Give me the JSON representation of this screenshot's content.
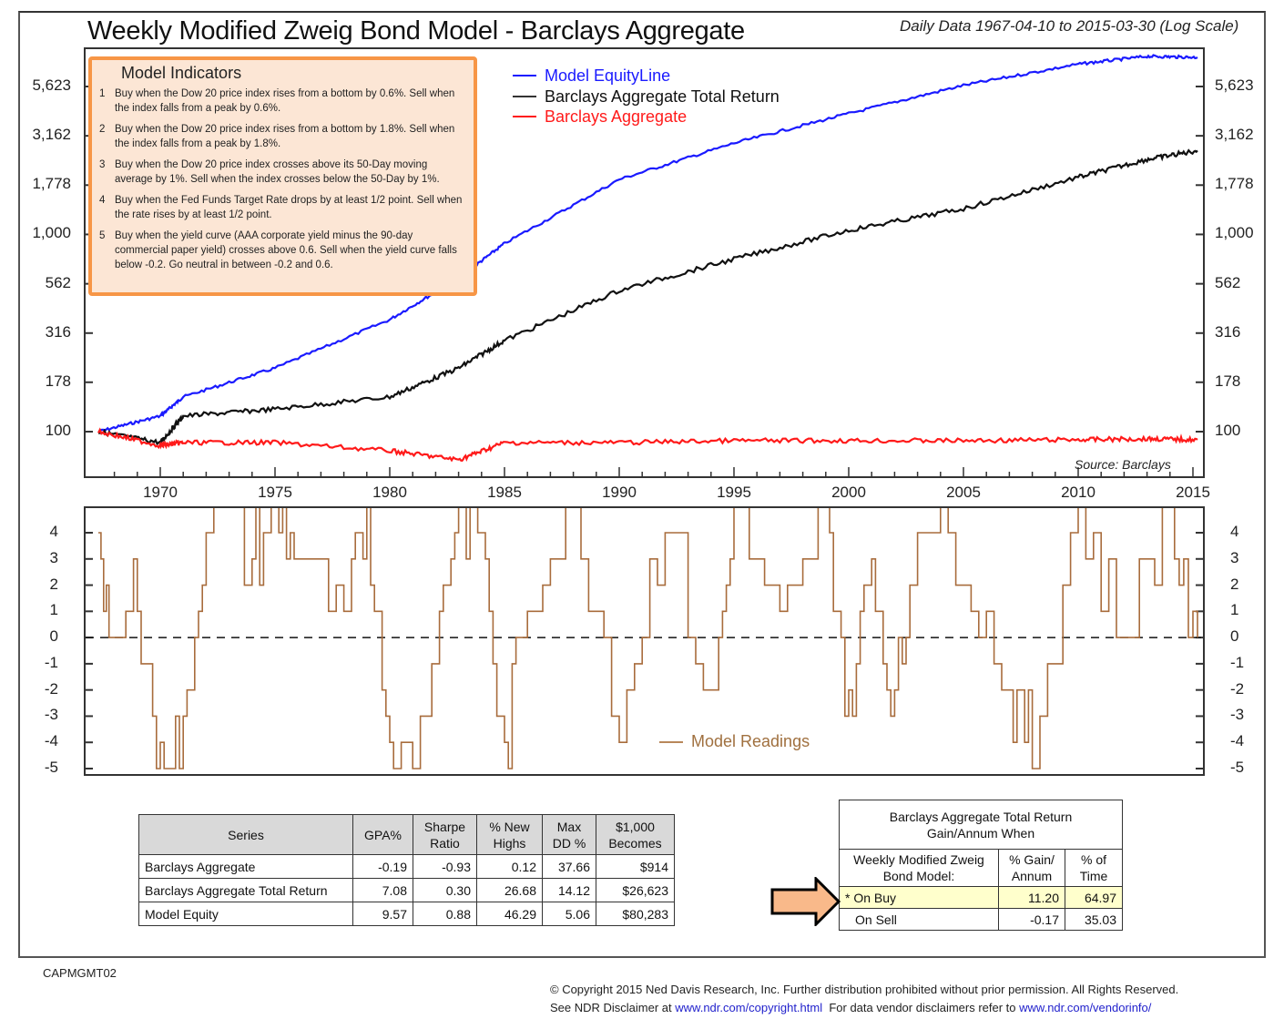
{
  "header": {
    "title": "Weekly Modified Zweig Bond Model - Barclays Aggregate",
    "subtitle": "Daily Data 1967-04-10 to 2015-03-30 (Log Scale)"
  },
  "indicators": {
    "title": "Model Indicators",
    "items": [
      {
        "num": "1",
        "text": "Buy when the Dow 20 price index rises from a bottom by 0.6%. Sell when the index falls from a peak by 0.6%."
      },
      {
        "num": "2",
        "text": "Buy when the Dow 20 price index rises from a bottom by 1.8%. Sell when the index falls from a peak by 1.8%."
      },
      {
        "num": "3",
        "text": "Buy when the Dow 20 price index crosses above its 50-Day moving average by 1%. Sell when the index crosses below the 50-Day by 1%."
      },
      {
        "num": "4",
        "text": "Buy when the Fed Funds Target Rate drops by at least 1/2 point. Sell when the rate rises by at least 1/2 point."
      },
      {
        "num": "5",
        "text": "Buy when the yield curve (AAA corporate yield minus the 90-day commercial paper yield) crosses above 0.6. Sell when the yield curve falls below -0.2. Go neutral in between -0.2 and 0.6."
      }
    ]
  },
  "legend": {
    "items": [
      {
        "label": "Model EquityLine",
        "color": "#1a1aff"
      },
      {
        "label": "Barclays Aggregate Total Return",
        "color": "#111111"
      },
      {
        "label": "Barclays Aggregate",
        "color": "#ff1a1a"
      }
    ]
  },
  "source": "Source: Barclays",
  "readings_legend": "Model Readings",
  "colors": {
    "equity": "#1a1aff",
    "total_return": "#111111",
    "aggregate": "#ff1a1a",
    "readings": "#a86c3c",
    "indicator_box_border": "#f79646",
    "indicator_box_fill": "#fce6d5",
    "highlight_row": "#ffffcc",
    "arrow_fill": "#f9b98a"
  },
  "chart_data": [
    {
      "type": "line",
      "title": "Weekly Modified Zweig Bond Model - Barclays Aggregate",
      "subtitle": "Daily Data 1967-04-10 to 2015-03-30 (Log Scale)",
      "xlabel": "",
      "ylabel": "",
      "yscale": "log",
      "ylim": [
        75,
        8500
      ],
      "y_ticks": [
        "100",
        "178",
        "316",
        "562",
        "1,000",
        "1,778",
        "3,162",
        "5,623"
      ],
      "x_ticks": [
        "1970",
        "1975",
        "1980",
        "1985",
        "1990",
        "1995",
        "2000",
        "2005",
        "2010",
        "2015"
      ],
      "x": [
        1967.3,
        1970,
        1971,
        1975,
        1980,
        1983,
        1985,
        1990,
        1995,
        2000,
        2005,
        2010,
        2013,
        2015.2
      ],
      "series": [
        {
          "name": "Model EquityLine",
          "values": [
            100,
            120,
            150,
            210,
            370,
            600,
            900,
            1900,
            2900,
            4100,
            5700,
            7300,
            8000,
            7900
          ]
        },
        {
          "name": "Barclays Aggregate Total Return",
          "values": [
            100,
            88,
            120,
            130,
            150,
            210,
            290,
            520,
            750,
            1050,
            1350,
            1950,
            2400,
            2660
          ]
        },
        {
          "name": "Barclays Aggregate",
          "values": [
            100,
            85,
            88,
            88,
            80,
            72,
            88,
            88,
            90,
            90,
            90,
            91,
            92,
            91
          ]
        }
      ],
      "legend_position": "top-center",
      "grid": false,
      "annotations": [
        "Source: Barclays"
      ]
    },
    {
      "type": "line",
      "title": "Model Readings",
      "ylim": [
        -5,
        5
      ],
      "y_ticks": [
        "4",
        "3",
        "2",
        "1",
        "0",
        "-1",
        "-2",
        "-3",
        "-4",
        "-5"
      ],
      "reference_line": 0,
      "x": [
        1967.3,
        1968,
        1969,
        1970,
        1971,
        1972,
        1974,
        1975,
        1976,
        1978,
        1979,
        1980,
        1981,
        1982,
        1983,
        1984,
        1985,
        1986,
        1988,
        1990,
        1992,
        1994,
        1995,
        1997,
        1999,
        2000,
        2001,
        2002,
        2003,
        2005,
        2007,
        2008,
        2010,
        2012,
        2014,
        2015.2
      ],
      "series": [
        {
          "name": "Model Readings",
          "values": [
            4,
            -1,
            2,
            -5,
            -4,
            5,
            3,
            5,
            3,
            0,
            5,
            -4,
            -5,
            0,
            5,
            4,
            -5,
            2,
            5,
            -3,
            5,
            -3,
            5,
            0,
            5,
            -3,
            3,
            -3,
            5,
            3,
            -2,
            -4,
            5,
            0,
            5,
            -1
          ]
        }
      ],
      "legend_position": "bottom-center",
      "grid": false
    }
  ],
  "stats_table": {
    "columns": [
      "Series",
      "GPA%",
      "Sharpe Ratio",
      "% New Highs",
      "Max DD %",
      "$1,000 Becomes"
    ],
    "rows": [
      [
        "Barclays Aggregate",
        "-0.19",
        "-0.93",
        "0.12",
        "37.66",
        "$914"
      ],
      [
        "Barclays Aggregate Total Return",
        "7.08",
        "0.30",
        "26.68",
        "14.12",
        "$26,623"
      ],
      [
        "Model Equity",
        "9.57",
        "0.88",
        "46.29",
        "5.06",
        "$80,283"
      ]
    ]
  },
  "gain_table": {
    "title_line1": "Barclays Aggregate Total Return",
    "title_line2": "Gain/Annum When",
    "col1": "Weekly Modified Zweig Bond Model:",
    "col2": "% Gain/ Annum",
    "col3": "% of Time",
    "rows": [
      [
        "* On Buy",
        "11.20",
        "64.97"
      ],
      [
        "On Sell",
        "-0.17",
        "35.03"
      ]
    ]
  },
  "footer": {
    "code": "CAPMGMT02",
    "copyright": "© Copyright 2015 Ned Davis Research, Inc. Further distribution prohibited without prior permission. All Rights Reserved.",
    "disclaimer_prefix": "See NDR Disclaimer at ",
    "disclaimer_link": "www.ndr.com/copyright.html",
    "vendor_prefix": "  For data vendor disclaimers refer to ",
    "vendor_link": "www.ndr.com/vendorinfo/"
  }
}
